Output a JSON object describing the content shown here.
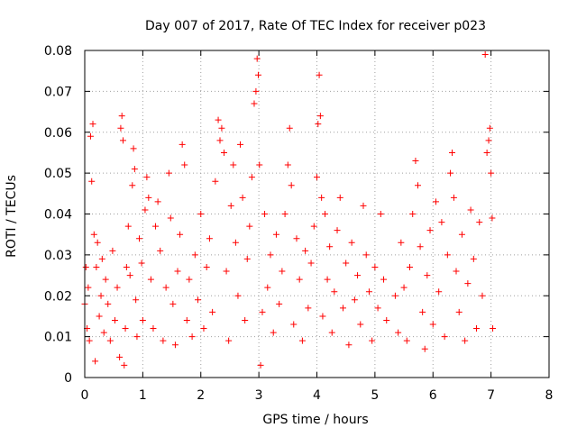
{
  "chart_data": {
    "type": "scatter",
    "title": "Day 007 of 2017, Rate Of TEC Index for receiver p023",
    "xlabel": "GPS time / hours",
    "ylabel": "ROTI / TECUs",
    "xlim": [
      0,
      8
    ],
    "ylim": [
      0,
      0.08
    ],
    "x_ticks": [
      "0",
      "1",
      "2",
      "3",
      "4",
      "5",
      "6",
      "7",
      "8"
    ],
    "y_ticks": [
      "0",
      "0.01",
      "0.02",
      "0.03",
      "0.04",
      "0.05",
      "0.06",
      "0.07",
      "0.08"
    ],
    "grid": true,
    "marker": "+",
    "color": "#ff0000",
    "series": [
      {
        "points": [
          [
            0.0,
            0.018
          ],
          [
            0.02,
            0.027
          ],
          [
            0.04,
            0.012
          ],
          [
            0.06,
            0.022
          ],
          [
            0.08,
            0.009
          ],
          [
            0.1,
            0.059
          ],
          [
            0.12,
            0.048
          ],
          [
            0.14,
            0.062
          ],
          [
            0.16,
            0.035
          ],
          [
            0.18,
            0.004
          ],
          [
            0.2,
            0.027
          ],
          [
            0.22,
            0.033
          ],
          [
            0.25,
            0.015
          ],
          [
            0.28,
            0.02
          ],
          [
            0.3,
            0.029
          ],
          [
            0.33,
            0.011
          ],
          [
            0.36,
            0.024
          ],
          [
            0.4,
            0.018
          ],
          [
            0.44,
            0.009
          ],
          [
            0.48,
            0.031
          ],
          [
            0.52,
            0.014
          ],
          [
            0.56,
            0.022
          ],
          [
            0.6,
            0.005
          ],
          [
            0.62,
            0.061
          ],
          [
            0.64,
            0.064
          ],
          [
            0.66,
            0.058
          ],
          [
            0.68,
            0.003
          ],
          [
            0.7,
            0.012
          ],
          [
            0.72,
            0.027
          ],
          [
            0.75,
            0.037
          ],
          [
            0.78,
            0.025
          ],
          [
            0.82,
            0.047
          ],
          [
            0.84,
            0.056
          ],
          [
            0.86,
            0.051
          ],
          [
            0.88,
            0.019
          ],
          [
            0.9,
            0.01
          ],
          [
            0.94,
            0.034
          ],
          [
            0.98,
            0.028
          ],
          [
            1.0,
            0.014
          ],
          [
            1.04,
            0.041
          ],
          [
            1.07,
            0.049
          ],
          [
            1.1,
            0.044
          ],
          [
            1.14,
            0.024
          ],
          [
            1.18,
            0.012
          ],
          [
            1.22,
            0.037
          ],
          [
            1.26,
            0.043
          ],
          [
            1.3,
            0.031
          ],
          [
            1.35,
            0.009
          ],
          [
            1.4,
            0.022
          ],
          [
            1.45,
            0.05
          ],
          [
            1.48,
            0.039
          ],
          [
            1.52,
            0.018
          ],
          [
            1.56,
            0.008
          ],
          [
            1.6,
            0.026
          ],
          [
            1.64,
            0.035
          ],
          [
            1.68,
            0.057
          ],
          [
            1.72,
            0.052
          ],
          [
            1.76,
            0.014
          ],
          [
            1.8,
            0.024
          ],
          [
            1.85,
            0.01
          ],
          [
            1.9,
            0.03
          ],
          [
            1.95,
            0.019
          ],
          [
            2.0,
            0.04
          ],
          [
            2.05,
            0.012
          ],
          [
            2.1,
            0.027
          ],
          [
            2.15,
            0.034
          ],
          [
            2.2,
            0.016
          ],
          [
            2.25,
            0.048
          ],
          [
            2.3,
            0.063
          ],
          [
            2.33,
            0.058
          ],
          [
            2.36,
            0.061
          ],
          [
            2.4,
            0.055
          ],
          [
            2.44,
            0.026
          ],
          [
            2.48,
            0.009
          ],
          [
            2.52,
            0.042
          ],
          [
            2.56,
            0.052
          ],
          [
            2.6,
            0.033
          ],
          [
            2.64,
            0.02
          ],
          [
            2.68,
            0.057
          ],
          [
            2.72,
            0.044
          ],
          [
            2.76,
            0.014
          ],
          [
            2.8,
            0.029
          ],
          [
            2.84,
            0.037
          ],
          [
            2.88,
            0.049
          ],
          [
            2.92,
            0.067
          ],
          [
            2.95,
            0.07
          ],
          [
            2.97,
            0.078
          ],
          [
            2.99,
            0.074
          ],
          [
            3.01,
            0.052
          ],
          [
            3.03,
            0.003
          ],
          [
            3.06,
            0.016
          ],
          [
            3.1,
            0.04
          ],
          [
            3.15,
            0.022
          ],
          [
            3.2,
            0.03
          ],
          [
            3.25,
            0.011
          ],
          [
            3.3,
            0.035
          ],
          [
            3.35,
            0.018
          ],
          [
            3.4,
            0.026
          ],
          [
            3.45,
            0.04
          ],
          [
            3.5,
            0.052
          ],
          [
            3.53,
            0.061
          ],
          [
            3.56,
            0.047
          ],
          [
            3.6,
            0.013
          ],
          [
            3.65,
            0.034
          ],
          [
            3.7,
            0.024
          ],
          [
            3.75,
            0.009
          ],
          [
            3.8,
            0.031
          ],
          [
            3.85,
            0.017
          ],
          [
            3.9,
            0.028
          ],
          [
            3.95,
            0.037
          ],
          [
            4.0,
            0.049
          ],
          [
            4.02,
            0.062
          ],
          [
            4.04,
            0.074
          ],
          [
            4.06,
            0.064
          ],
          [
            4.08,
            0.044
          ],
          [
            4.1,
            0.015
          ],
          [
            4.14,
            0.04
          ],
          [
            4.18,
            0.024
          ],
          [
            4.22,
            0.032
          ],
          [
            4.26,
            0.011
          ],
          [
            4.3,
            0.021
          ],
          [
            4.35,
            0.036
          ],
          [
            4.4,
            0.044
          ],
          [
            4.45,
            0.017
          ],
          [
            4.5,
            0.028
          ],
          [
            4.55,
            0.008
          ],
          [
            4.6,
            0.033
          ],
          [
            4.65,
            0.019
          ],
          [
            4.7,
            0.025
          ],
          [
            4.75,
            0.013
          ],
          [
            4.8,
            0.042
          ],
          [
            4.85,
            0.03
          ],
          [
            4.9,
            0.021
          ],
          [
            4.95,
            0.009
          ],
          [
            5.0,
            0.027
          ],
          [
            5.05,
            0.017
          ],
          [
            5.1,
            0.04
          ],
          [
            5.15,
            0.024
          ],
          [
            5.2,
            0.014
          ],
          [
            5.35,
            0.02
          ],
          [
            5.4,
            0.011
          ],
          [
            5.45,
            0.033
          ],
          [
            5.5,
            0.022
          ],
          [
            5.55,
            0.009
          ],
          [
            5.6,
            0.027
          ],
          [
            5.65,
            0.04
          ],
          [
            5.7,
            0.053
          ],
          [
            5.74,
            0.047
          ],
          [
            5.78,
            0.032
          ],
          [
            5.82,
            0.016
          ],
          [
            5.86,
            0.007
          ],
          [
            5.9,
            0.025
          ],
          [
            5.95,
            0.036
          ],
          [
            6.0,
            0.013
          ],
          [
            6.05,
            0.043
          ],
          [
            6.1,
            0.021
          ],
          [
            6.15,
            0.038
          ],
          [
            6.2,
            0.01
          ],
          [
            6.25,
            0.03
          ],
          [
            6.3,
            0.05
          ],
          [
            6.33,
            0.055
          ],
          [
            6.36,
            0.044
          ],
          [
            6.4,
            0.026
          ],
          [
            6.45,
            0.016
          ],
          [
            6.5,
            0.035
          ],
          [
            6.55,
            0.009
          ],
          [
            6.6,
            0.023
          ],
          [
            6.65,
            0.041
          ],
          [
            6.7,
            0.029
          ],
          [
            6.75,
            0.012
          ],
          [
            6.8,
            0.038
          ],
          [
            6.85,
            0.02
          ],
          [
            6.9,
            0.079
          ],
          [
            6.93,
            0.055
          ],
          [
            6.96,
            0.058
          ],
          [
            6.98,
            0.061
          ],
          [
            7.0,
            0.05
          ],
          [
            7.02,
            0.039
          ],
          [
            7.03,
            0.012
          ]
        ]
      }
    ]
  }
}
